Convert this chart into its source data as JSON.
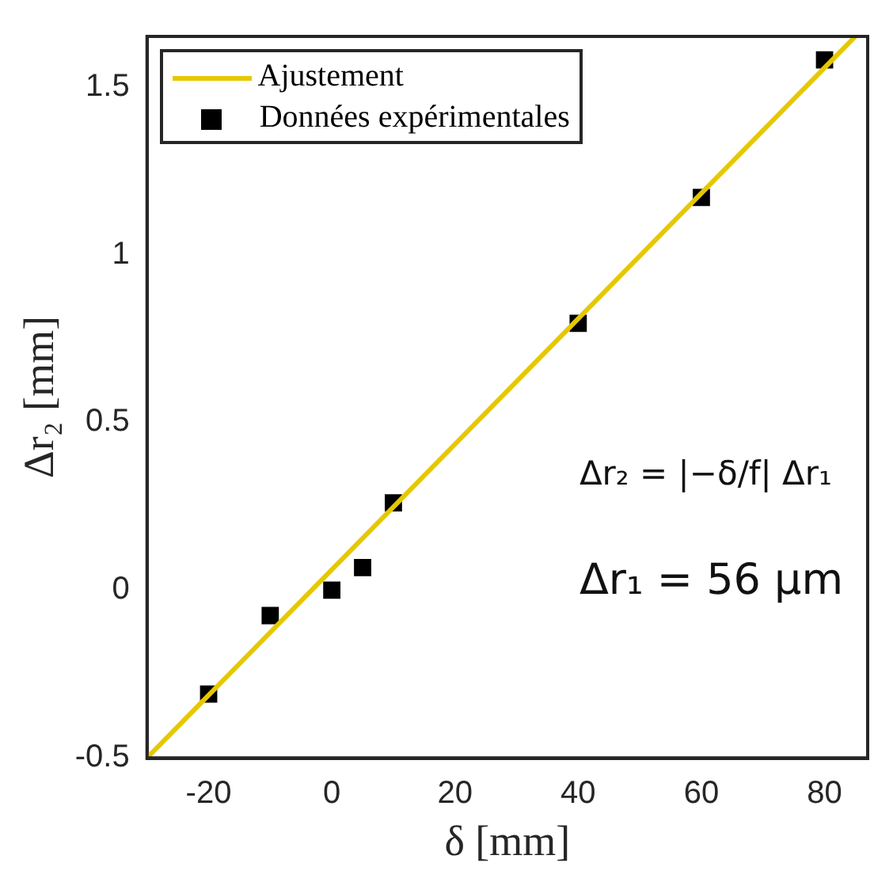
{
  "chart_data": {
    "type": "scatter",
    "xlabel": "δ [mm]",
    "ylabel": "Δr₂ [mm]",
    "xlim": [
      -30,
      87
    ],
    "xticks": [
      -20,
      0,
      20,
      40,
      60,
      80
    ],
    "ylim": [
      -0.5,
      1.65
    ],
    "yticks": [
      -0.5,
      0,
      0.5,
      1,
      1.5
    ],
    "grid": false,
    "legend": "top left",
    "marker": "square",
    "series": [
      {
        "name": "Ajustement",
        "type": "line",
        "color": "#e6c800",
        "line_style": "solid",
        "marker": "none",
        "x": [
          -30,
          85
        ],
        "values": [
          -0.5,
          1.65
        ]
      },
      {
        "name": "Données expérimentales",
        "color": "#000000",
        "x": [
          -20,
          -10,
          0,
          5,
          10,
          40,
          60,
          80
        ],
        "values": [
          -0.31,
          -0.076,
          0,
          0.067,
          0.26,
          0.795,
          1.17,
          1.58
        ]
      }
    ],
    "annotations": [
      "Δr₂ = |−δ/f| Δr₁",
      "Δr₁ = 56 μm"
    ]
  }
}
